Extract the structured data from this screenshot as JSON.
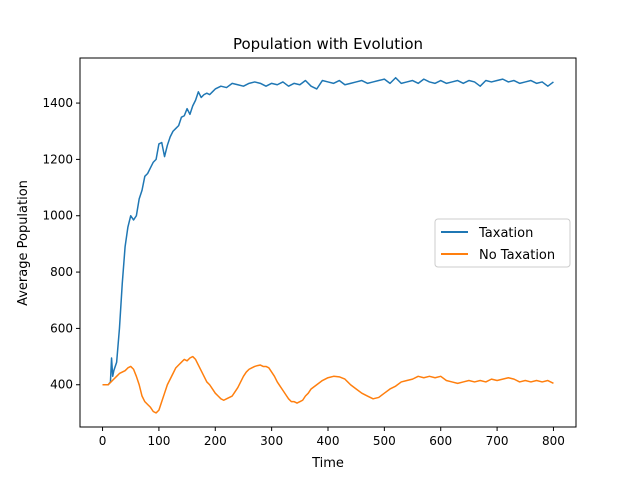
{
  "chart_data": {
    "type": "line",
    "title": "Population with Evolution",
    "xlabel": "Time",
    "ylabel": "Average Population",
    "xlim": [
      -40,
      840
    ],
    "ylim": [
      250,
      1560
    ],
    "xticks": [
      0,
      100,
      200,
      300,
      400,
      500,
      600,
      700,
      800
    ],
    "yticks": [
      400,
      600,
      800,
      1000,
      1200,
      1400
    ],
    "grid": false,
    "legend_position": "center-right",
    "series": [
      {
        "name": "Taxation",
        "color": "#1f77b4",
        "x": [
          0,
          10,
          14,
          16,
          18,
          20,
          25,
          30,
          35,
          40,
          45,
          50,
          55,
          60,
          65,
          70,
          75,
          80,
          85,
          90,
          95,
          100,
          105,
          110,
          115,
          120,
          125,
          130,
          135,
          140,
          145,
          150,
          155,
          160,
          165,
          170,
          175,
          180,
          185,
          190,
          195,
          200,
          210,
          220,
          230,
          240,
          250,
          260,
          270,
          280,
          290,
          300,
          310,
          320,
          330,
          340,
          350,
          360,
          370,
          380,
          390,
          400,
          410,
          420,
          430,
          440,
          450,
          460,
          470,
          480,
          490,
          500,
          510,
          520,
          530,
          540,
          550,
          560,
          570,
          580,
          590,
          600,
          610,
          620,
          630,
          640,
          650,
          660,
          670,
          680,
          690,
          700,
          710,
          720,
          730,
          740,
          750,
          760,
          770,
          780,
          790,
          800
        ],
        "y": [
          400,
          400,
          410,
          495,
          430,
          450,
          480,
          600,
          760,
          890,
          960,
          1000,
          985,
          1000,
          1060,
          1090,
          1140,
          1150,
          1170,
          1190,
          1200,
          1255,
          1260,
          1210,
          1250,
          1280,
          1300,
          1310,
          1320,
          1350,
          1355,
          1380,
          1360,
          1390,
          1410,
          1440,
          1420,
          1430,
          1435,
          1430,
          1440,
          1450,
          1460,
          1455,
          1470,
          1465,
          1460,
          1470,
          1475,
          1470,
          1460,
          1470,
          1465,
          1475,
          1460,
          1470,
          1465,
          1480,
          1460,
          1450,
          1480,
          1475,
          1470,
          1480,
          1465,
          1470,
          1475,
          1480,
          1470,
          1475,
          1480,
          1485,
          1470,
          1490,
          1470,
          1475,
          1480,
          1470,
          1485,
          1475,
          1470,
          1480,
          1470,
          1475,
          1480,
          1470,
          1480,
          1475,
          1460,
          1480,
          1475,
          1480,
          1485,
          1475,
          1480,
          1470,
          1475,
          1480,
          1470,
          1475,
          1460,
          1475
        ]
      },
      {
        "name": "No Taxation",
        "color": "#ff7f0e",
        "x": [
          0,
          10,
          15,
          20,
          25,
          30,
          35,
          40,
          45,
          50,
          55,
          60,
          65,
          70,
          75,
          80,
          85,
          90,
          95,
          100,
          105,
          110,
          115,
          120,
          125,
          130,
          135,
          140,
          145,
          150,
          155,
          160,
          165,
          170,
          175,
          180,
          185,
          190,
          195,
          200,
          205,
          210,
          215,
          220,
          225,
          230,
          235,
          240,
          245,
          250,
          255,
          260,
          265,
          270,
          275,
          280,
          285,
          290,
          295,
          300,
          305,
          310,
          315,
          320,
          325,
          330,
          335,
          340,
          345,
          350,
          355,
          360,
          365,
          370,
          380,
          390,
          400,
          410,
          420,
          430,
          440,
          450,
          460,
          470,
          480,
          490,
          500,
          510,
          520,
          530,
          540,
          550,
          560,
          570,
          580,
          590,
          600,
          610,
          620,
          630,
          640,
          650,
          660,
          670,
          680,
          690,
          700,
          710,
          720,
          730,
          740,
          750,
          760,
          770,
          780,
          790,
          800
        ],
        "y": [
          400,
          400,
          410,
          420,
          430,
          440,
          445,
          450,
          460,
          465,
          455,
          430,
          400,
          360,
          340,
          330,
          320,
          305,
          300,
          310,
          340,
          370,
          400,
          420,
          440,
          460,
          470,
          480,
          490,
          485,
          495,
          500,
          490,
          470,
          450,
          430,
          410,
          400,
          385,
          370,
          360,
          350,
          345,
          350,
          355,
          360,
          375,
          390,
          410,
          430,
          445,
          455,
          460,
          465,
          468,
          470,
          465,
          465,
          460,
          445,
          430,
          410,
          395,
          380,
          365,
          350,
          340,
          340,
          335,
          340,
          345,
          360,
          370,
          385,
          400,
          415,
          425,
          430,
          428,
          420,
          400,
          385,
          370,
          360,
          350,
          355,
          370,
          385,
          395,
          410,
          415,
          420,
          430,
          425,
          430,
          425,
          430,
          415,
          410,
          405,
          410,
          415,
          410,
          415,
          410,
          420,
          415,
          420,
          425,
          420,
          410,
          415,
          410,
          415,
          410,
          415,
          405
        ]
      }
    ]
  }
}
